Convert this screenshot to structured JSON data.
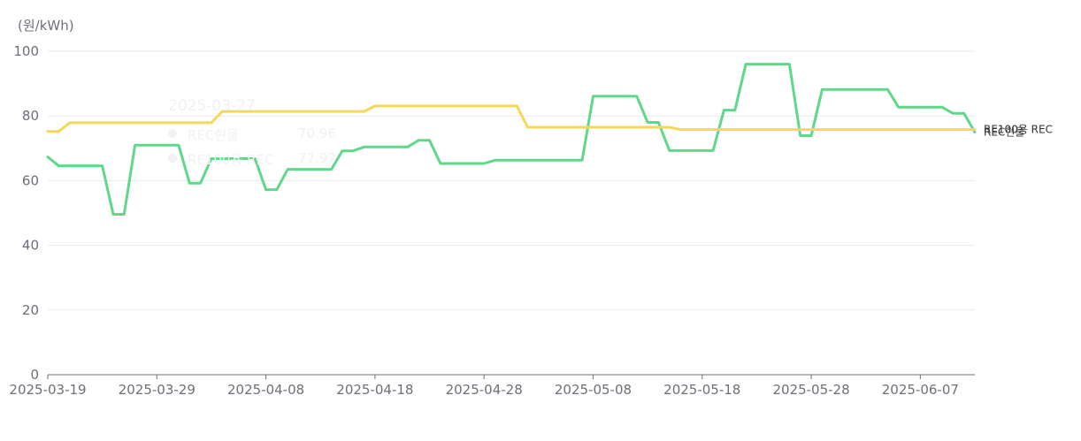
{
  "chart_data": {
    "type": "line",
    "unit_label": "(원/kWh)",
    "ylim": [
      0,
      100
    ],
    "y_ticks": [
      0,
      20,
      40,
      60,
      80,
      100
    ],
    "x_start": "2025-03-19",
    "x_end": "2025-06-12",
    "x_ticks": [
      "2025-03-19",
      "2025-03-29",
      "2025-04-08",
      "2025-04-18",
      "2025-04-28",
      "2025-05-08",
      "2025-05-18",
      "2025-05-28",
      "2025-06-07"
    ],
    "grid": true,
    "series": [
      {
        "name": "REC현물",
        "color": "#5fd88a",
        "points": [
          [
            "2025-03-19",
            67.3
          ],
          [
            "2025-03-20",
            64.6
          ],
          [
            "2025-03-24",
            64.6
          ],
          [
            "2025-03-25",
            49.6
          ],
          [
            "2025-03-26",
            49.6
          ],
          [
            "2025-03-27",
            70.96
          ],
          [
            "2025-03-31",
            70.96
          ],
          [
            "2025-04-01",
            59.2
          ],
          [
            "2025-04-02",
            59.2
          ],
          [
            "2025-04-03",
            66.8
          ],
          [
            "2025-04-07",
            66.8
          ],
          [
            "2025-04-08",
            57.2
          ],
          [
            "2025-04-09",
            57.2
          ],
          [
            "2025-04-10",
            63.5
          ],
          [
            "2025-04-14",
            63.5
          ],
          [
            "2025-04-15",
            69.2
          ],
          [
            "2025-04-16",
            69.2
          ],
          [
            "2025-04-17",
            70.4
          ],
          [
            "2025-04-21",
            70.4
          ],
          [
            "2025-04-22",
            72.5
          ],
          [
            "2025-04-23",
            72.5
          ],
          [
            "2025-04-24",
            65.3
          ],
          [
            "2025-04-28",
            65.3
          ],
          [
            "2025-04-29",
            66.3
          ],
          [
            "2025-05-07",
            66.3
          ],
          [
            "2025-05-08",
            86.1
          ],
          [
            "2025-05-12",
            86.1
          ],
          [
            "2025-05-13",
            78.0
          ],
          [
            "2025-05-14",
            78.0
          ],
          [
            "2025-05-15",
            69.3
          ],
          [
            "2025-05-19",
            69.3
          ],
          [
            "2025-05-20",
            81.8
          ],
          [
            "2025-05-21",
            81.8
          ],
          [
            "2025-05-22",
            96.0
          ],
          [
            "2025-05-26",
            96.0
          ],
          [
            "2025-05-27",
            73.9
          ],
          [
            "2025-05-28",
            73.9
          ],
          [
            "2025-05-29",
            88.2
          ],
          [
            "2025-06-04",
            88.2
          ],
          [
            "2025-06-05",
            82.7
          ],
          [
            "2025-06-09",
            82.7
          ],
          [
            "2025-06-10",
            80.8
          ],
          [
            "2025-06-11",
            80.8
          ],
          [
            "2025-06-12",
            75.0
          ]
        ]
      },
      {
        "name": "RE100용 REC",
        "color": "#f5d85a",
        "points": [
          [
            "2025-03-19",
            75.2
          ],
          [
            "2025-03-20",
            75.2
          ],
          [
            "2025-03-21",
            77.9
          ],
          [
            "2025-04-03",
            77.9
          ],
          [
            "2025-04-04",
            81.4
          ],
          [
            "2025-04-17",
            81.4
          ],
          [
            "2025-04-18",
            83.1
          ],
          [
            "2025-05-01",
            83.1
          ],
          [
            "2025-05-02",
            76.5
          ],
          [
            "2025-05-15",
            76.5
          ],
          [
            "2025-05-16",
            75.8
          ],
          [
            "2025-06-12",
            75.8
          ]
        ]
      }
    ]
  }
}
